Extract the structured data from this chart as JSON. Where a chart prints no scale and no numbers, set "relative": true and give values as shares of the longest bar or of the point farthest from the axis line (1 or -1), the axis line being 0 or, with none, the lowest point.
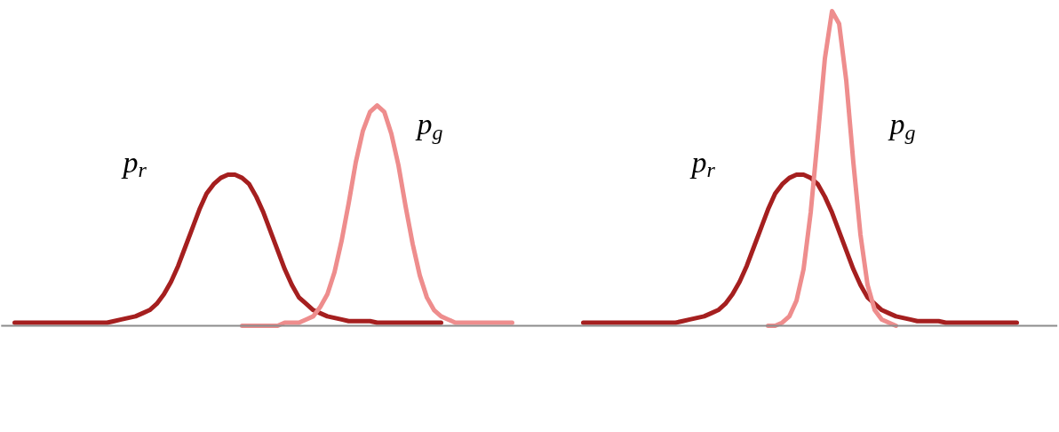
{
  "chart_data": {
    "type": "line",
    "relative": true,
    "categories": [
      null,
      null,
      null,
      null,
      null,
      null,
      null,
      null,
      null,
      null,
      null,
      null,
      null,
      null,
      null,
      null,
      null,
      null,
      null,
      null,
      null,
      null,
      null,
      null,
      null,
      null,
      null,
      null,
      null,
      null,
      null,
      null,
      null,
      null,
      null,
      null,
      null,
      null,
      null,
      null,
      null,
      null,
      null,
      null,
      null,
      null,
      null,
      null,
      null,
      null,
      null,
      null,
      null,
      null,
      null,
      null,
      null,
      null,
      null,
      null,
      null,
      null,
      null,
      null,
      null,
      null,
      null,
      null,
      null,
      null,
      null,
      null,
      null,
      null,
      null,
      null,
      null,
      null,
      null,
      null,
      null,
      null,
      null,
      null,
      null,
      null,
      null,
      null,
      null,
      null,
      null,
      null,
      null,
      null,
      null,
      null,
      null,
      null,
      null,
      null,
      null,
      null,
      null,
      null,
      null,
      null,
      null,
      null,
      null,
      null,
      null,
      null,
      null,
      null,
      null,
      null,
      null,
      null,
      null,
      null,
      null,
      null,
      null,
      null,
      null,
      null,
      null,
      null,
      null,
      null,
      null,
      null,
      null,
      null,
      null,
      null,
      null,
      null,
      null,
      null,
      null,
      null,
      null,
      null,
      null,
      null
    ],
    "series": [
      {
        "name": "p$_{r}$",
        "color": "#a51f1f",
        "values": [
          0.01,
          0.01,
          0.01,
          0.01,
          0.01,
          0.01,
          0.01,
          0.01,
          0.01,
          0.01,
          0.01,
          0.01,
          0.01,
          0.01,
          0.015,
          0.02,
          0.025,
          0.03,
          0.04,
          0.05,
          0.07,
          0.1,
          0.14,
          0.19,
          0.25,
          0.31,
          0.37,
          0.42,
          0.45,
          0.47,
          0.48,
          0.48,
          0.47,
          0.45,
          0.41,
          0.36,
          0.3,
          0.24,
          0.18,
          0.13,
          0.09,
          0.07,
          0.05,
          0.04,
          0.03,
          0.025,
          0.02,
          0.015,
          0.015,
          0.015,
          0.015,
          0.01,
          0.01,
          0.01,
          0.01,
          0.01,
          0.01,
          0.01,
          0.01,
          0.01,
          0.01,
          null,
          null,
          null,
          null,
          null,
          null,
          null,
          null,
          null,
          null,
          null,
          null,
          null,
          null,
          null,
          null,
          null,
          null,
          null,
          null,
          null,
          null,
          null,
          null,
          null,
          null,
          null,
          null,
          null,
          null,
          null,
          null,
          null,
          null,
          null,
          null,
          null,
          null,
          null,
          null,
          null,
          null,
          null,
          null,
          null,
          null,
          null,
          null,
          null,
          null,
          null,
          null,
          null,
          null,
          null,
          null,
          null,
          null,
          null,
          null,
          null,
          null,
          null,
          null,
          null,
          null,
          null,
          null,
          null,
          null,
          null,
          null,
          null,
          null,
          null,
          null,
          null,
          null,
          null,
          null,
          null,
          null,
          null,
          null,
          null
        ]
      },
      {
        "name": "p$_{g}$",
        "color": "#ee8d8d",
        "values": [
          null,
          null,
          null,
          null,
          null,
          null,
          null,
          null,
          null,
          null,
          null,
          null,
          null,
          null,
          null,
          null,
          null,
          null,
          null,
          null,
          null,
          null,
          null,
          null,
          null,
          null,
          null,
          null,
          null,
          null,
          null,
          null,
          0.0,
          0.0,
          0.0,
          0.0,
          0.0,
          0.0,
          0.01,
          0.01,
          0.01,
          0.02,
          0.03,
          0.06,
          0.1,
          0.17,
          0.27,
          0.39,
          0.52,
          0.62,
          0.68,
          0.7,
          0.68,
          0.61,
          0.51,
          0.38,
          0.26,
          0.16,
          0.09,
          0.05,
          0.03,
          0.02,
          0.01,
          0.01,
          0.01,
          0.01,
          0.01,
          0.01,
          0.01,
          0.01,
          0.01,
          null,
          null,
          null,
          null,
          null,
          null,
          null,
          null,
          null,
          null,
          null,
          null,
          null,
          null,
          null,
          null,
          null,
          null,
          null,
          null,
          null,
          null,
          null,
          null,
          null,
          null,
          null,
          null,
          null,
          null,
          null,
          null,
          null,
          null,
          null,
          null,
          null,
          null,
          null,
          null,
          null,
          null,
          null,
          null,
          null,
          null,
          null,
          null,
          null,
          null,
          null,
          null,
          null,
          null,
          null,
          null,
          null,
          null,
          null,
          null,
          null,
          null,
          null,
          null,
          null,
          null,
          null,
          null,
          null,
          null,
          null,
          null,
          null,
          null,
          null
        ]
      },
      {
        "name": "p$_{r}$",
        "color": "#a51f1f",
        "values": [
          null,
          null,
          null,
          null,
          null,
          null,
          null,
          null,
          null,
          null,
          null,
          null,
          null,
          null,
          null,
          null,
          null,
          null,
          null,
          null,
          null,
          null,
          null,
          null,
          null,
          null,
          null,
          null,
          null,
          null,
          null,
          null,
          null,
          null,
          null,
          null,
          null,
          null,
          null,
          null,
          null,
          null,
          null,
          null,
          null,
          null,
          null,
          null,
          null,
          null,
          null,
          null,
          null,
          null,
          null,
          null,
          null,
          null,
          null,
          null,
          null,
          null,
          null,
          null,
          null,
          null,
          null,
          null,
          null,
          null,
          null,
          null,
          null,
          null,
          null,
          null,
          null,
          null,
          null,
          null,
          0.01,
          0.01,
          0.01,
          0.01,
          0.01,
          0.01,
          0.01,
          0.01,
          0.01,
          0.01,
          0.01,
          0.01,
          0.01,
          0.01,
          0.015,
          0.02,
          0.025,
          0.03,
          0.04,
          0.05,
          0.07,
          0.1,
          0.14,
          0.19,
          0.25,
          0.31,
          0.37,
          0.42,
          0.45,
          0.47,
          0.48,
          0.48,
          0.47,
          0.45,
          0.41,
          0.36,
          0.3,
          0.24,
          0.18,
          0.13,
          0.09,
          0.07,
          0.05,
          0.04,
          0.03,
          0.025,
          0.02,
          0.015,
          0.015,
          0.015,
          0.015,
          0.01,
          0.01,
          0.01,
          0.01,
          0.01,
          0.01,
          0.01,
          0.01,
          0.01,
          0.01,
          0.01,
          null,
          null,
          null,
          null
        ]
      },
      {
        "name": "p$_{g}$",
        "color": "#ee8d8d",
        "values": [
          null,
          null,
          null,
          null,
          null,
          null,
          null,
          null,
          null,
          null,
          null,
          null,
          null,
          null,
          null,
          null,
          null,
          null,
          null,
          null,
          null,
          null,
          null,
          null,
          null,
          null,
          null,
          null,
          null,
          null,
          null,
          null,
          null,
          null,
          null,
          null,
          null,
          null,
          null,
          null,
          null,
          null,
          null,
          null,
          null,
          null,
          null,
          null,
          null,
          null,
          null,
          null,
          null,
          null,
          null,
          null,
          null,
          null,
          null,
          null,
          null,
          null,
          null,
          null,
          null,
          null,
          null,
          null,
          null,
          null,
          null,
          null,
          null,
          null,
          null,
          null,
          null,
          null,
          null,
          null,
          null,
          null,
          null,
          null,
          null,
          null,
          null,
          null,
          null,
          null,
          null,
          null,
          null,
          null,
          null,
          null,
          null,
          null,
          null,
          null,
          null,
          null,
          null,
          null,
          null,
          null,
          0.0,
          0.0,
          0.01,
          0.03,
          0.08,
          0.18,
          0.36,
          0.6,
          0.85,
          1.0,
          0.96,
          0.78,
          0.52,
          0.29,
          0.13,
          0.05,
          0.02,
          0.01,
          0.0,
          null,
          null,
          null,
          null,
          null,
          null,
          null,
          null,
          null,
          null,
          null,
          null,
          null,
          null,
          null,
          null,
          null,
          null,
          null,
          null,
          null
        ]
      }
    ]
  }
}
